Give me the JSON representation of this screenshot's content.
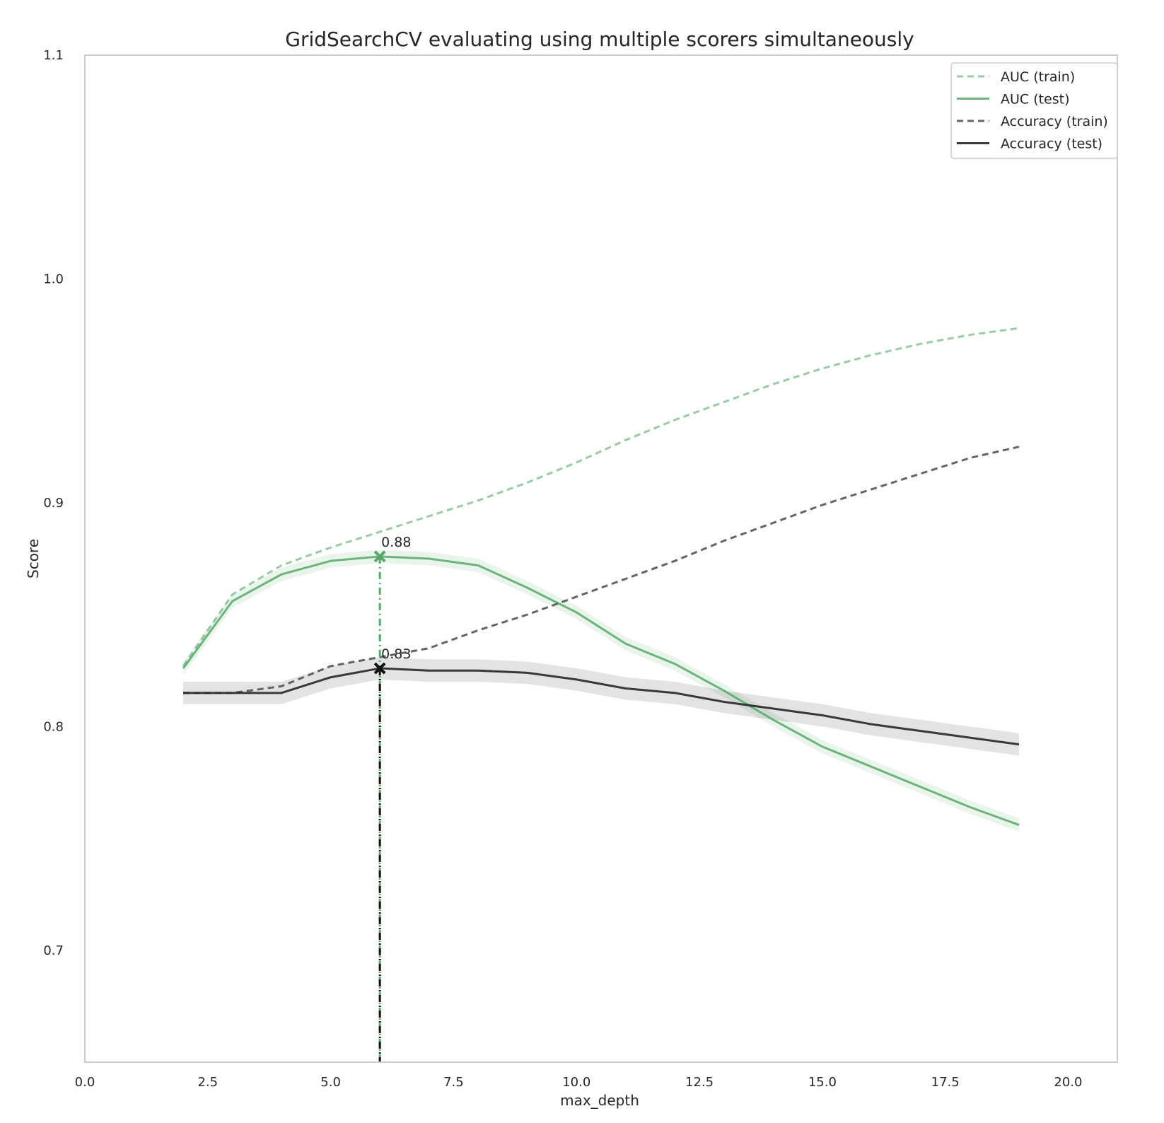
{
  "chart_data": {
    "type": "line",
    "title": "GridSearchCV evaluating using multiple scorers simultaneously",
    "xlabel": "max_depth",
    "ylabel": "Score",
    "xlim": [
      0,
      21
    ],
    "ylim": [
      0.65,
      1.1
    ],
    "x_ticks": [
      0.0,
      2.5,
      5.0,
      7.5,
      10.0,
      12.5,
      15.0,
      17.5,
      20.0
    ],
    "x_tick_labels": [
      "0.0",
      "2.5",
      "5.0",
      "7.5",
      "10.0",
      "12.5",
      "15.0",
      "17.5",
      "20.0"
    ],
    "y_ticks": [
      0.7,
      0.8,
      0.9,
      1.0,
      1.1
    ],
    "y_tick_labels": [
      "0.7",
      "0.8",
      "0.9",
      "1.0",
      "1.1"
    ],
    "grid": false,
    "legend_position": "top-right",
    "x": [
      2,
      3,
      4,
      5,
      6,
      7,
      8,
      9,
      10,
      11,
      12,
      13,
      14,
      15,
      16,
      17,
      18,
      19
    ],
    "series": [
      {
        "name": "AUC (train)",
        "color": "#55a868",
        "style": "dashed",
        "opacity": 0.6,
        "values": [
          0.827,
          0.859,
          0.872,
          0.88,
          0.887,
          0.894,
          0.901,
          0.909,
          0.918,
          0.928,
          0.937,
          0.945,
          0.953,
          0.96,
          0.966,
          0.971,
          0.975,
          0.978
        ]
      },
      {
        "name": "AUC (test)",
        "color": "#55a868",
        "style": "solid",
        "opacity": 0.85,
        "band": 0.003,
        "values": [
          0.826,
          0.856,
          0.868,
          0.874,
          0.876,
          0.875,
          0.872,
          0.862,
          0.851,
          0.837,
          0.828,
          0.816,
          0.803,
          0.791,
          0.782,
          0.773,
          0.764,
          0.756
        ]
      },
      {
        "name": "Accuracy (train)",
        "color": "#4a4a4a",
        "style": "dashed",
        "opacity": 0.85,
        "values": [
          0.815,
          0.815,
          0.818,
          0.827,
          0.831,
          0.835,
          0.843,
          0.85,
          0.858,
          0.866,
          0.874,
          0.883,
          0.891,
          0.899,
          0.906,
          0.913,
          0.92,
          0.925
        ]
      },
      {
        "name": "Accuracy (test)",
        "color": "#262626",
        "style": "solid",
        "opacity": 0.9,
        "band": 0.005,
        "values": [
          0.815,
          0.815,
          0.815,
          0.822,
          0.826,
          0.825,
          0.825,
          0.824,
          0.821,
          0.817,
          0.815,
          0.811,
          0.808,
          0.805,
          0.801,
          0.798,
          0.795,
          0.792
        ]
      }
    ],
    "best": [
      {
        "series": "AUC (test)",
        "x": 6,
        "value": 0.876,
        "label": "0.88",
        "color": "#55a868"
      },
      {
        "series": "Accuracy (test)",
        "x": 6,
        "value": 0.826,
        "label": "0.83",
        "color": "#111111"
      }
    ]
  }
}
